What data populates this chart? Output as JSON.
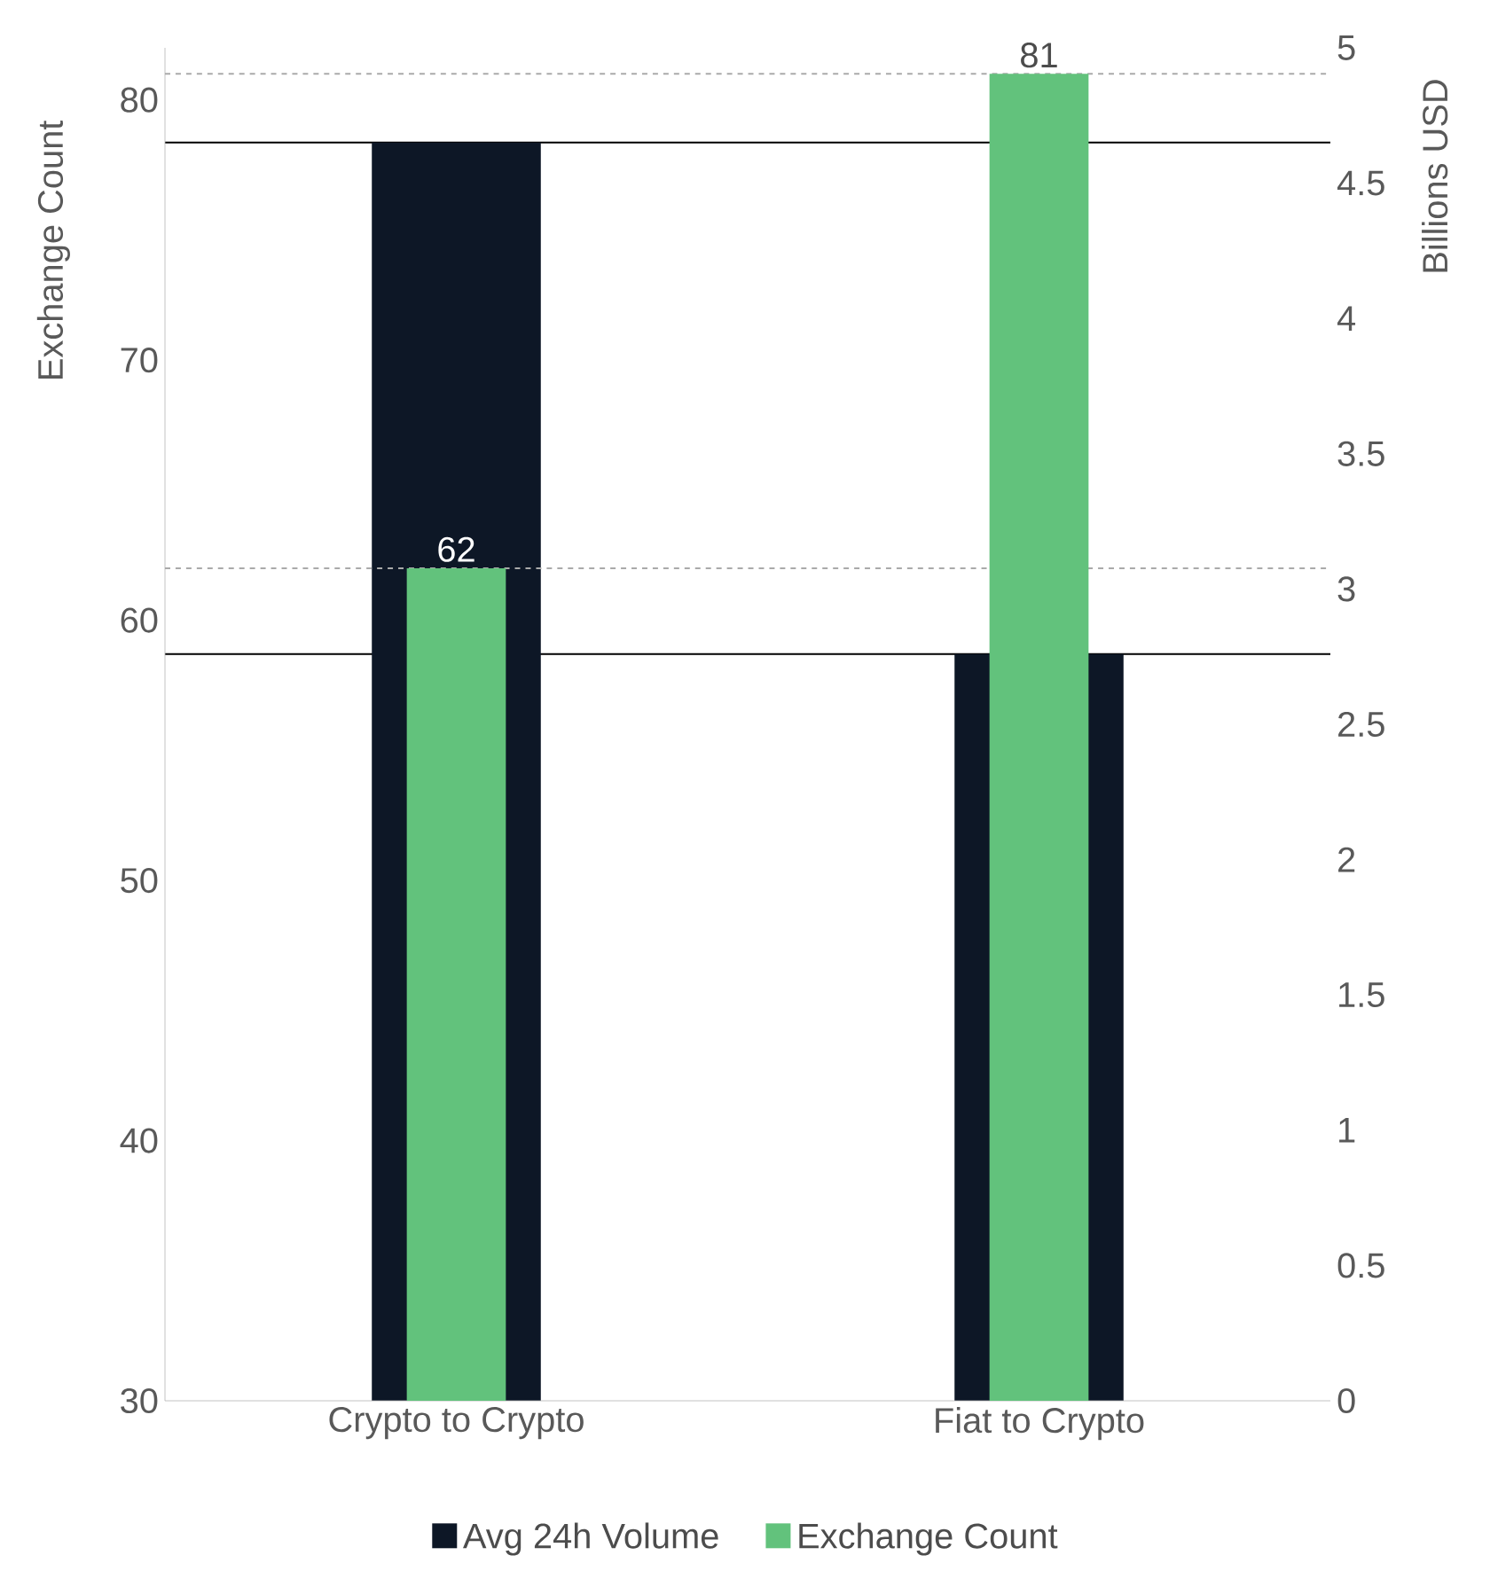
{
  "chart_data": {
    "type": "bar",
    "categories": [
      "Crypto to Crypto",
      "Fiat to Crypto"
    ],
    "series": [
      {
        "name": "Avg 24h Volume",
        "color": "#0d1726",
        "values": [
          4.65,
          2.76
        ],
        "axis": "y2"
      },
      {
        "name": "Exchange Count",
        "color": "#62c27c",
        "values": [
          62,
          81
        ],
        "value_labels": [
          "62",
          "81"
        ]
      }
    ],
    "ylabel": "Exchange Count",
    "y2label": "Billions USD",
    "ylim": [
      30,
      82
    ],
    "yticks": [
      30,
      40,
      50,
      60,
      70,
      80
    ],
    "y2lim": [
      0,
      5
    ],
    "y2ticks": [
      0,
      0.5,
      1,
      1.5,
      2,
      2.5,
      3,
      3.5,
      4,
      4.5,
      5
    ],
    "legend": "bottom",
    "ref_lines": [
      {
        "axis": "y",
        "value": 62,
        "color": "#aaaaaa",
        "line_style": "dashed"
      },
      {
        "axis": "y",
        "value": 81,
        "color": "#aaaaaa",
        "line_style": "dashed"
      },
      {
        "axis": "y2",
        "value": 4.65,
        "color": "#000000",
        "line_style": "solid"
      },
      {
        "axis": "y2",
        "value": 2.76,
        "color": "#000000",
        "line_style": "solid"
      }
    ]
  }
}
